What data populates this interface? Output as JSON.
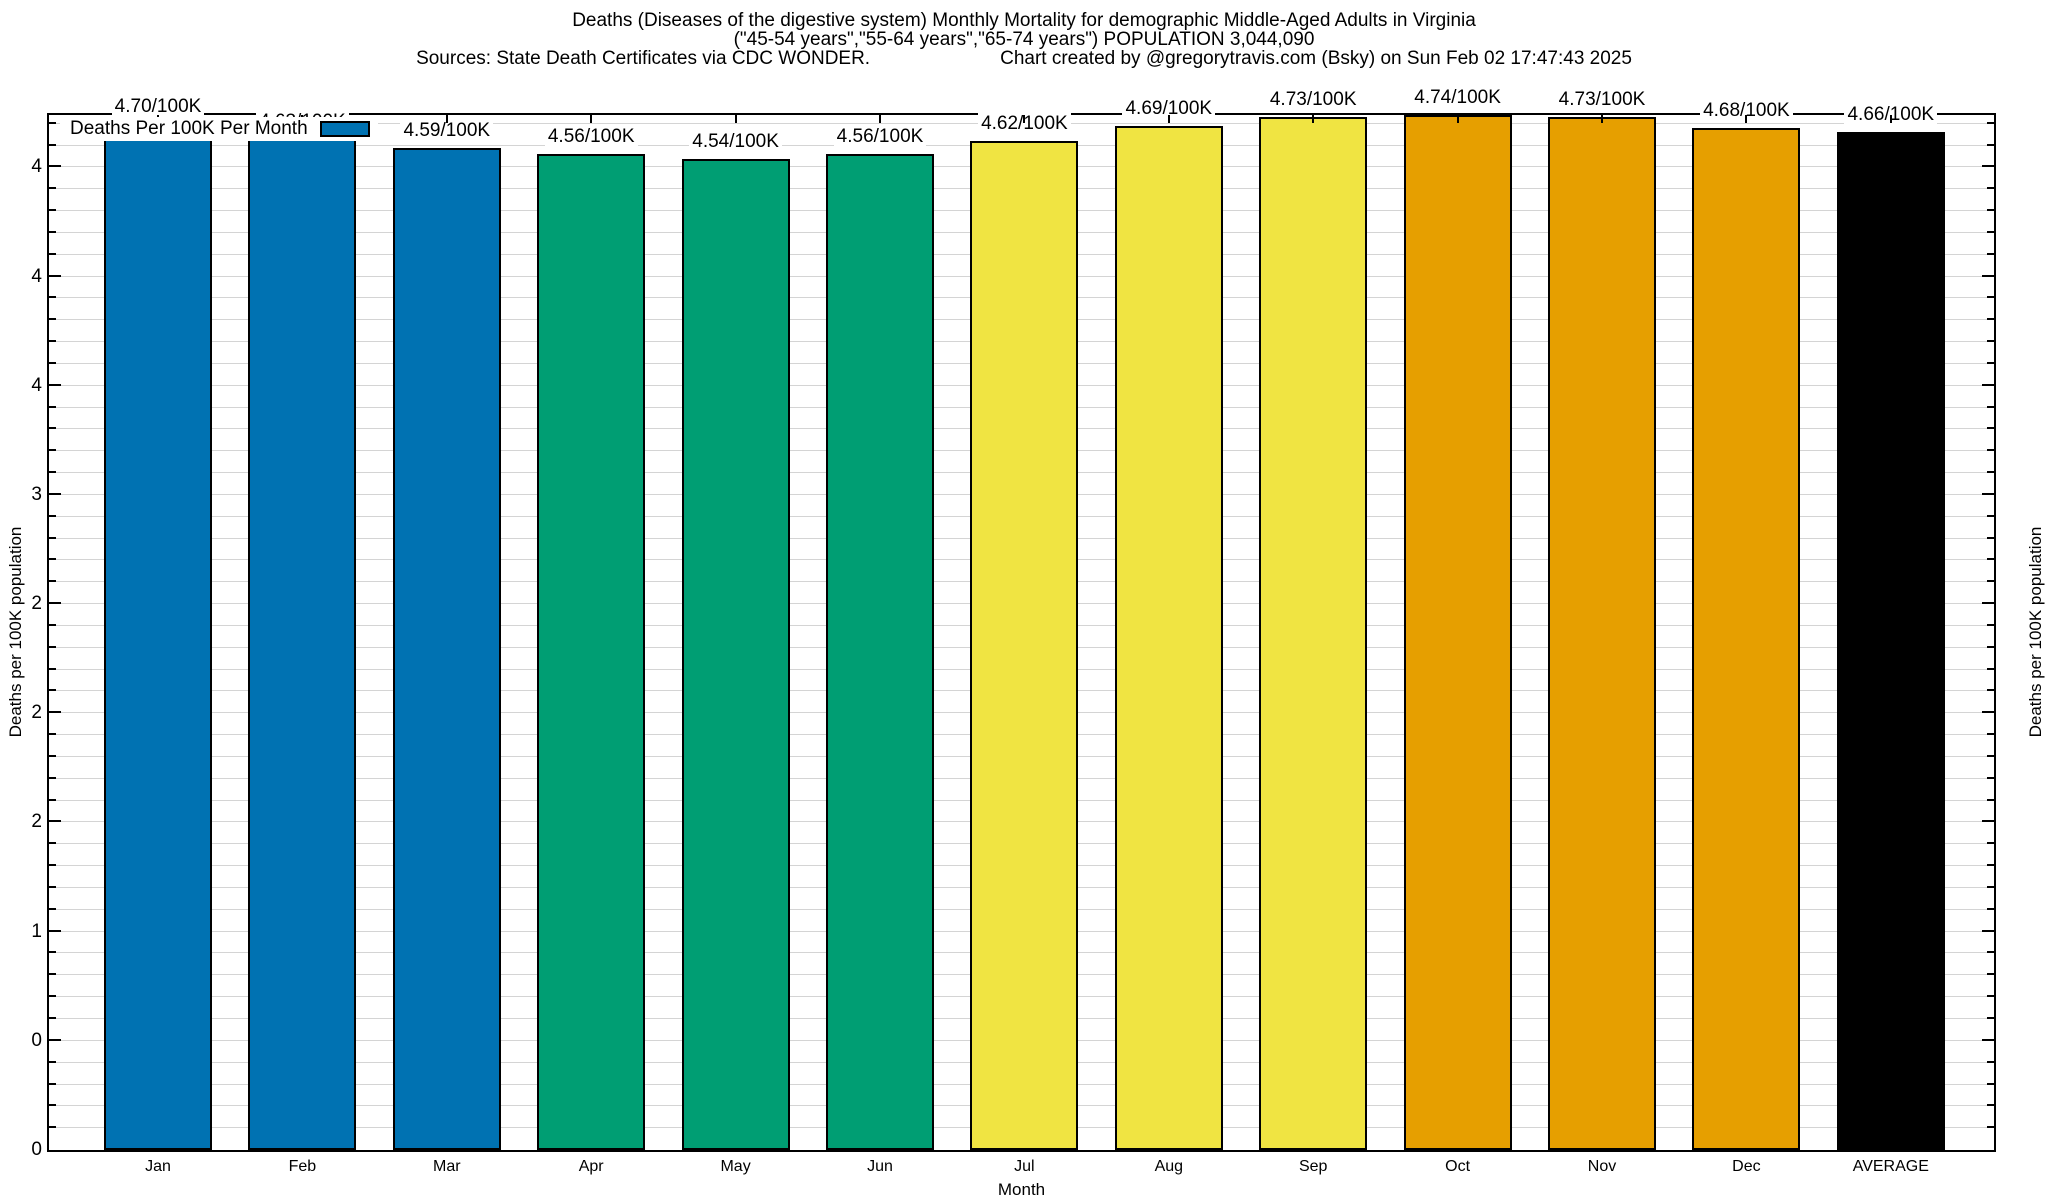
{
  "header": {
    "title_line1": "Deaths (Diseases of the digestive system) Monthly Mortality for demographic Middle-Aged Adults in Virginia",
    "title_line2": "(\"45-54 years\",\"55-64 years\",\"65-74 years\") POPULATION 3,044,090",
    "sources": "Sources: State Death Certificates via CDC WONDER.",
    "credit": "Chart created by @gregorytravis.com (Bsky) on Sun Feb 02 17:47:43 2025"
  },
  "legend": {
    "label": "Deaths Per 100K Per Month",
    "swatch_color": "#0072B2"
  },
  "axes": {
    "ylabel_left": "Deaths per 100K population",
    "ylabel_right": "Deaths per 100K population",
    "xlabel": "Month"
  },
  "chart_data": {
    "type": "bar",
    "title": "Deaths (Diseases of the digestive system) Monthly Mortality for demographic Middle-Aged Adults in Virginia",
    "subtitle": "(\"45-54 years\",\"55-64 years\",\"65-74 years\") POPULATION 3,044,090",
    "source": "Sources: State Death Certificates via CDC WONDER.",
    "credit": "Chart created by @gregorytravis.com (Bsky) on Sun Feb 02 17:47:43 2025",
    "xlabel": "Month",
    "ylabel": "Deaths per 100K population",
    "legend": "Deaths Per 100K Per Month",
    "categories": [
      "Jan",
      "Feb",
      "Mar",
      "Apr",
      "May",
      "Jun",
      "Jul",
      "Aug",
      "Sep",
      "Oct",
      "Nov",
      "Dec",
      "AVERAGE"
    ],
    "values": [
      4.7,
      4.63,
      4.59,
      4.56,
      4.54,
      4.56,
      4.62,
      4.69,
      4.73,
      4.74,
      4.73,
      4.68,
      4.66
    ],
    "bar_labels": [
      "4.70/100K",
      "4.63/100K",
      "4.59/100K",
      "4.56/100K",
      "4.54/100K",
      "4.56/100K",
      "4.62/100K",
      "4.69/100K",
      "4.73/100K",
      "4.74/100K",
      "4.73/100K",
      "4.68/100K",
      "4.66/100K"
    ],
    "bar_colors": [
      "#0072B2",
      "#0072B2",
      "#0072B2",
      "#009E73",
      "#009E73",
      "#009E73",
      "#F0E442",
      "#F0E442",
      "#F0E442",
      "#E69F00",
      "#E69F00",
      "#E69F00",
      "#000000"
    ],
    "ylim": [
      0,
      4.74
    ],
    "yticks": [
      [
        0.0,
        "0"
      ],
      [
        0.5,
        "0"
      ],
      [
        1.0,
        "1"
      ],
      [
        1.5,
        "2"
      ],
      [
        2.0,
        "2"
      ],
      [
        2.5,
        "2"
      ],
      [
        3.0,
        "3"
      ],
      [
        3.5,
        "4"
      ],
      [
        4.0,
        "4"
      ],
      [
        4.5,
        "4"
      ]
    ],
    "minor_tick_step": 0.1,
    "grid": true,
    "legend_position": "top-left"
  }
}
